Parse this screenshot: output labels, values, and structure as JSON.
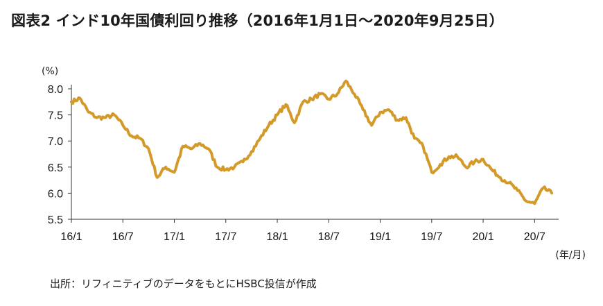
{
  "header": {
    "title": "図表2  インド10年国債利回り推移（2016年1月1日～2020年9月25日）"
  },
  "source": "出所：リフィニティブのデータをもとにHSBC投信が作成",
  "colors": {
    "line": "#d39a2a",
    "axis": "#333333"
  },
  "chart_data": {
    "type": "line",
    "title": "図表2  インド10年国債利回り推移（2016年1月1日～2020年9月25日）",
    "ylabel": "(%)",
    "xlabel": "(年/月)",
    "ylim": [
      5.5,
      8.0
    ],
    "yticks": [
      8.0,
      7.5,
      7.0,
      6.5,
      6.0,
      5.5
    ],
    "ytick_labels": [
      "8.0",
      "7.5",
      "7.0",
      "6.5",
      "6.0",
      "5.5"
    ],
    "x_range": [
      "2016-01",
      "2020-09"
    ],
    "xtick_labels": [
      "16/1",
      "16/7",
      "17/1",
      "17/7",
      "18/1",
      "18/7",
      "19/1",
      "19/7",
      "20/1",
      "20/7"
    ],
    "grid": false,
    "series": [
      {
        "x": [
          "2016-01",
          "2016-02",
          "2016-03",
          "2016-04",
          "2016-05",
          "2016-06",
          "2016-07",
          "2016-08",
          "2016-09",
          "2016-10",
          "2016-11",
          "2016-12",
          "2017-01",
          "2017-02",
          "2017-03",
          "2017-04",
          "2017-05",
          "2017-06",
          "2017-07",
          "2017-08",
          "2017-09",
          "2017-10",
          "2017-11",
          "2017-12",
          "2018-01",
          "2018-02",
          "2018-03",
          "2018-04",
          "2018-05",
          "2018-06",
          "2018-07",
          "2018-08",
          "2018-09",
          "2018-10",
          "2018-11",
          "2018-12",
          "2019-01",
          "2019-02",
          "2019-03",
          "2019-04",
          "2019-05",
          "2019-06",
          "2019-07",
          "2019-08",
          "2019-09",
          "2019-10",
          "2019-11",
          "2019-12",
          "2020-01",
          "2020-02",
          "2020-03",
          "2020-04",
          "2020-05",
          "2020-06",
          "2020-07",
          "2020-08",
          "2020-09"
        ],
        "values": [
          7.75,
          7.82,
          7.55,
          7.45,
          7.45,
          7.5,
          7.3,
          7.1,
          7.05,
          6.85,
          6.3,
          6.5,
          6.4,
          6.9,
          6.85,
          6.95,
          6.85,
          6.5,
          6.45,
          6.5,
          6.6,
          6.8,
          7.05,
          7.3,
          7.5,
          7.7,
          7.35,
          7.75,
          7.8,
          7.9,
          7.8,
          7.9,
          8.15,
          7.9,
          7.6,
          7.3,
          7.55,
          7.6,
          7.4,
          7.45,
          7.05,
          6.9,
          6.4,
          6.55,
          6.7,
          6.7,
          6.5,
          6.6,
          6.65,
          6.45,
          6.3,
          6.2,
          6.05,
          5.85,
          5.8,
          6.1,
          6.0
        ]
      }
    ]
  }
}
